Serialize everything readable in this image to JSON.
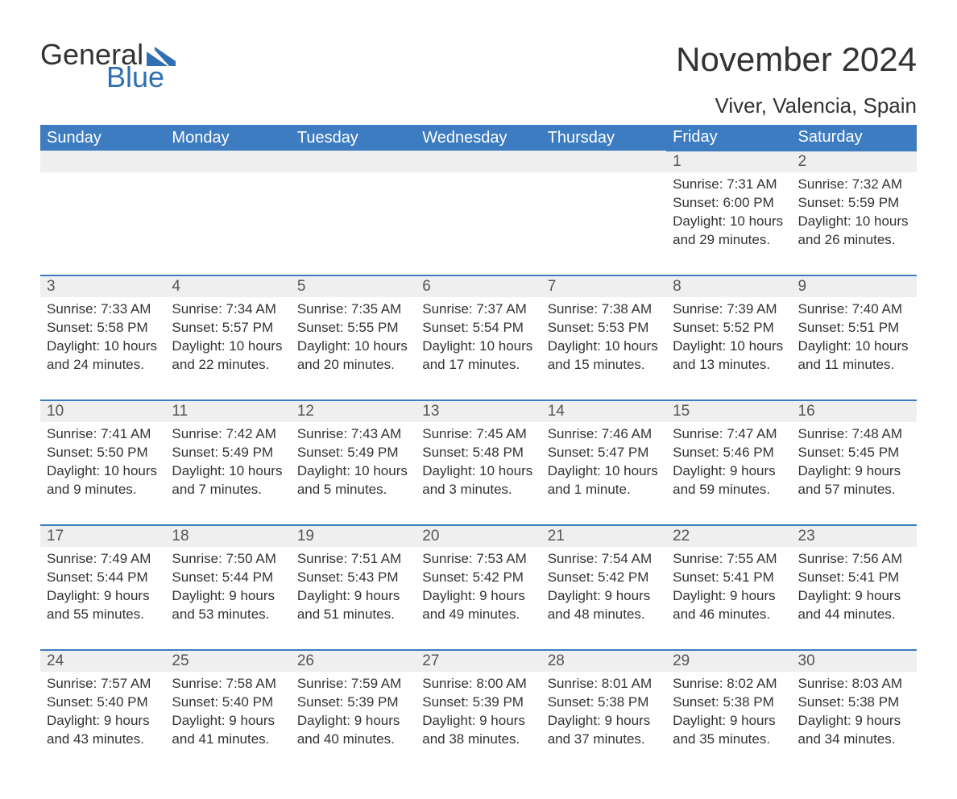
{
  "logo": {
    "text1": "General",
    "text2": "Blue",
    "flag_color": "#2f6fb2"
  },
  "title": "November 2024",
  "location": "Viver, Valencia, Spain",
  "colors": {
    "header_bg": "#3d7cc0",
    "header_text": "#ffffff",
    "row_border": "#3d7cc0",
    "daynum_bg": "#efefef",
    "text": "#333333",
    "logo_blue": "#2f6fb2"
  },
  "typography": {
    "title_fontsize": 42,
    "location_fontsize": 26,
    "header_fontsize": 20,
    "daynum_fontsize": 19,
    "body_fontsize": 17
  },
  "weekdays": [
    "Sunday",
    "Monday",
    "Tuesday",
    "Wednesday",
    "Thursday",
    "Friday",
    "Saturday"
  ],
  "weeks": [
    [
      null,
      null,
      null,
      null,
      null,
      {
        "d": "1",
        "sr": "Sunrise: 7:31 AM",
        "ss": "Sunset: 6:00 PM",
        "dl": "Daylight: 10 hours and 29 minutes."
      },
      {
        "d": "2",
        "sr": "Sunrise: 7:32 AM",
        "ss": "Sunset: 5:59 PM",
        "dl": "Daylight: 10 hours and 26 minutes."
      }
    ],
    [
      {
        "d": "3",
        "sr": "Sunrise: 7:33 AM",
        "ss": "Sunset: 5:58 PM",
        "dl": "Daylight: 10 hours and 24 minutes."
      },
      {
        "d": "4",
        "sr": "Sunrise: 7:34 AM",
        "ss": "Sunset: 5:57 PM",
        "dl": "Daylight: 10 hours and 22 minutes."
      },
      {
        "d": "5",
        "sr": "Sunrise: 7:35 AM",
        "ss": "Sunset: 5:55 PM",
        "dl": "Daylight: 10 hours and 20 minutes."
      },
      {
        "d": "6",
        "sr": "Sunrise: 7:37 AM",
        "ss": "Sunset: 5:54 PM",
        "dl": "Daylight: 10 hours and 17 minutes."
      },
      {
        "d": "7",
        "sr": "Sunrise: 7:38 AM",
        "ss": "Sunset: 5:53 PM",
        "dl": "Daylight: 10 hours and 15 minutes."
      },
      {
        "d": "8",
        "sr": "Sunrise: 7:39 AM",
        "ss": "Sunset: 5:52 PM",
        "dl": "Daylight: 10 hours and 13 minutes."
      },
      {
        "d": "9",
        "sr": "Sunrise: 7:40 AM",
        "ss": "Sunset: 5:51 PM",
        "dl": "Daylight: 10 hours and 11 minutes."
      }
    ],
    [
      {
        "d": "10",
        "sr": "Sunrise: 7:41 AM",
        "ss": "Sunset: 5:50 PM",
        "dl": "Daylight: 10 hours and 9 minutes."
      },
      {
        "d": "11",
        "sr": "Sunrise: 7:42 AM",
        "ss": "Sunset: 5:49 PM",
        "dl": "Daylight: 10 hours and 7 minutes."
      },
      {
        "d": "12",
        "sr": "Sunrise: 7:43 AM",
        "ss": "Sunset: 5:49 PM",
        "dl": "Daylight: 10 hours and 5 minutes."
      },
      {
        "d": "13",
        "sr": "Sunrise: 7:45 AM",
        "ss": "Sunset: 5:48 PM",
        "dl": "Daylight: 10 hours and 3 minutes."
      },
      {
        "d": "14",
        "sr": "Sunrise: 7:46 AM",
        "ss": "Sunset: 5:47 PM",
        "dl": "Daylight: 10 hours and 1 minute."
      },
      {
        "d": "15",
        "sr": "Sunrise: 7:47 AM",
        "ss": "Sunset: 5:46 PM",
        "dl": "Daylight: 9 hours and 59 minutes."
      },
      {
        "d": "16",
        "sr": "Sunrise: 7:48 AM",
        "ss": "Sunset: 5:45 PM",
        "dl": "Daylight: 9 hours and 57 minutes."
      }
    ],
    [
      {
        "d": "17",
        "sr": "Sunrise: 7:49 AM",
        "ss": "Sunset: 5:44 PM",
        "dl": "Daylight: 9 hours and 55 minutes."
      },
      {
        "d": "18",
        "sr": "Sunrise: 7:50 AM",
        "ss": "Sunset: 5:44 PM",
        "dl": "Daylight: 9 hours and 53 minutes."
      },
      {
        "d": "19",
        "sr": "Sunrise: 7:51 AM",
        "ss": "Sunset: 5:43 PM",
        "dl": "Daylight: 9 hours and 51 minutes."
      },
      {
        "d": "20",
        "sr": "Sunrise: 7:53 AM",
        "ss": "Sunset: 5:42 PM",
        "dl": "Daylight: 9 hours and 49 minutes."
      },
      {
        "d": "21",
        "sr": "Sunrise: 7:54 AM",
        "ss": "Sunset: 5:42 PM",
        "dl": "Daylight: 9 hours and 48 minutes."
      },
      {
        "d": "22",
        "sr": "Sunrise: 7:55 AM",
        "ss": "Sunset: 5:41 PM",
        "dl": "Daylight: 9 hours and 46 minutes."
      },
      {
        "d": "23",
        "sr": "Sunrise: 7:56 AM",
        "ss": "Sunset: 5:41 PM",
        "dl": "Daylight: 9 hours and 44 minutes."
      }
    ],
    [
      {
        "d": "24",
        "sr": "Sunrise: 7:57 AM",
        "ss": "Sunset: 5:40 PM",
        "dl": "Daylight: 9 hours and 43 minutes."
      },
      {
        "d": "25",
        "sr": "Sunrise: 7:58 AM",
        "ss": "Sunset: 5:40 PM",
        "dl": "Daylight: 9 hours and 41 minutes."
      },
      {
        "d": "26",
        "sr": "Sunrise: 7:59 AM",
        "ss": "Sunset: 5:39 PM",
        "dl": "Daylight: 9 hours and 40 minutes."
      },
      {
        "d": "27",
        "sr": "Sunrise: 8:00 AM",
        "ss": "Sunset: 5:39 PM",
        "dl": "Daylight: 9 hours and 38 minutes."
      },
      {
        "d": "28",
        "sr": "Sunrise: 8:01 AM",
        "ss": "Sunset: 5:38 PM",
        "dl": "Daylight: 9 hours and 37 minutes."
      },
      {
        "d": "29",
        "sr": "Sunrise: 8:02 AM",
        "ss": "Sunset: 5:38 PM",
        "dl": "Daylight: 9 hours and 35 minutes."
      },
      {
        "d": "30",
        "sr": "Sunrise: 8:03 AM",
        "ss": "Sunset: 5:38 PM",
        "dl": "Daylight: 9 hours and 34 minutes."
      }
    ]
  ]
}
